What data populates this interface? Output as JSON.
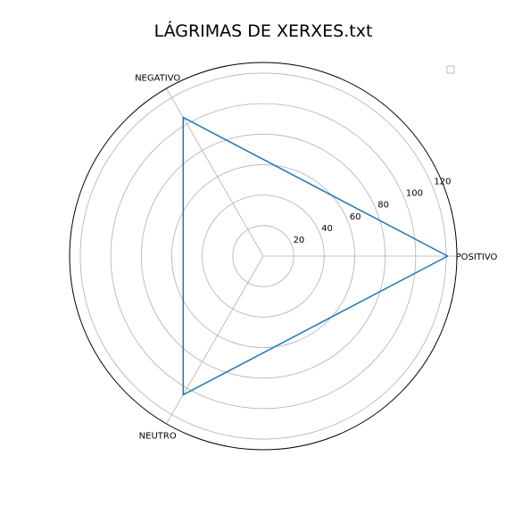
{
  "chart_data": {
    "type": "radar",
    "title": "LÁGRIMAS DE XERXES.txt",
    "categories": [
      "POSITIVO",
      "NEGATIVO",
      "NEUTRO"
    ],
    "series": [
      {
        "values": [
          121,
          105,
          105
        ],
        "color": "#1f77b4"
      }
    ],
    "r_ticks": [
      20,
      40,
      60,
      80,
      100,
      120
    ],
    "rlim": [
      0,
      127
    ],
    "grid": true,
    "legend": "top-right (empty)"
  }
}
